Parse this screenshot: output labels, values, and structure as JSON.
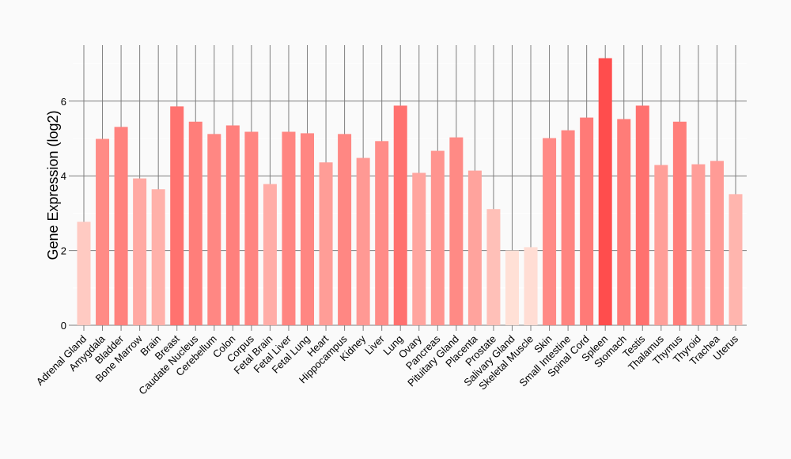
{
  "chart_data": {
    "type": "bar",
    "title": "",
    "xlabel": "",
    "ylabel": "Gene Expression (log2)",
    "ylim": [
      0,
      7.5
    ],
    "yticks": [
      0,
      2,
      4,
      6
    ],
    "grid": true,
    "color_low": "#ffe0d6",
    "color_high": "#ff4d4d",
    "categories": [
      "Adrenal Gland",
      "Amygdala",
      "Bladder",
      "Bone Marrow",
      "Brain",
      "Breast",
      "Caudate Nucleus",
      "Cerebellum",
      "Colon",
      "Corpus",
      "Fetal Brain",
      "Fetal Liver",
      "Fetal Lung",
      "Heart",
      "Hippocampus",
      "Kidney",
      "Liver",
      "Lung",
      "Ovary",
      "Pancreas",
      "Pituitary Gland",
      "Placenta",
      "Prostate",
      "Salivary Gland",
      "Skeletal Muscle",
      "Skin",
      "Small Intestine",
      "Spinal Cord",
      "Spleen",
      "Stomach",
      "Testis",
      "Thalamus",
      "Thymus",
      "Thyroid",
      "Trachea",
      "Uterus"
    ],
    "values": [
      2.77,
      4.99,
      5.31,
      3.93,
      3.64,
      5.86,
      5.45,
      5.12,
      5.35,
      5.18,
      3.78,
      5.18,
      5.14,
      4.36,
      5.12,
      4.48,
      4.93,
      5.88,
      4.08,
      4.67,
      5.03,
      4.14,
      3.11,
      2.0,
      2.09,
      5.01,
      5.22,
      5.56,
      7.15,
      5.52,
      5.88,
      4.29,
      5.45,
      4.31,
      4.4,
      3.51
    ]
  }
}
